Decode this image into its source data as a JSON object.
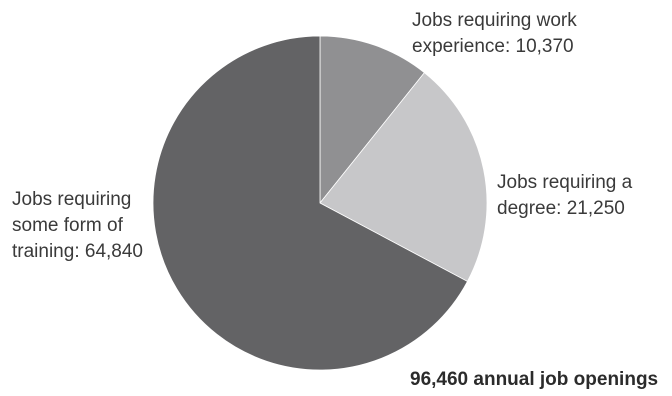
{
  "chart_data": {
    "type": "pie",
    "categories": [
      "Jobs requiring work experience",
      "Jobs requiring a degree",
      "Jobs requiring some form of training"
    ],
    "values": [
      10370,
      21250,
      64840
    ],
    "colors": [
      "#909092",
      "#c7c7c9",
      "#636365"
    ],
    "labels": [
      {
        "line1": "Jobs requiring work",
        "line2": "experience: 10,370"
      },
      {
        "line1": "Jobs requiring a",
        "line2": "degree: 21,250"
      },
      {
        "line1": "Jobs requiring",
        "line2": "some form of",
        "line3": "training: 64,840"
      }
    ],
    "total_label": "96,460 annual job openings",
    "legend": "none"
  }
}
